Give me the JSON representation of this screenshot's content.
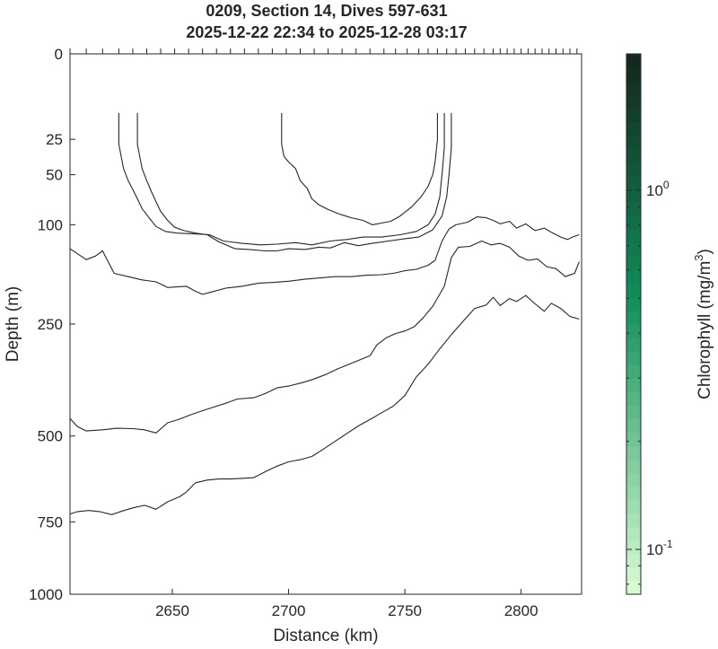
{
  "chart_data": {
    "type": "line",
    "title_lines": [
      "0209, Section 14, Dives 597-631",
      "2025-12-22 22:34 to 2025-12-28 03:17"
    ],
    "xlabel": "Distance (km)",
    "ylabel": "Depth (m)",
    "xlim": [
      2606,
      2826
    ],
    "ylim": [
      0,
      1000
    ],
    "y_scale": "power",
    "x_ticks": [
      "2650",
      "2700",
      "2750",
      "2800"
    ],
    "y_ticks": [
      "0",
      "25",
      "50",
      "100",
      "250",
      "500",
      "750",
      "1000"
    ],
    "top_tick_distances": [
      2606,
      2613,
      2620,
      2627,
      2633,
      2639,
      2645,
      2651,
      2657,
      2663,
      2669,
      2675,
      2681,
      2687,
      2693,
      2699,
      2705,
      2711,
      2717,
      2723,
      2729,
      2735,
      2741,
      2746,
      2751,
      2756,
      2760,
      2764,
      2768,
      2772,
      2776,
      2780,
      2784,
      2788,
      2791,
      2794,
      2797,
      2800,
      2803,
      2806,
      2809,
      2812,
      2815,
      2818,
      2821,
      2824
    ],
    "series": [
      {
        "values": [
          [
            2697,
            12
          ],
          [
            2697,
            28
          ],
          [
            2698,
            36
          ],
          [
            2700,
            40
          ],
          [
            2703,
            45
          ],
          [
            2705,
            55
          ],
          [
            2708,
            62
          ],
          [
            2710,
            72
          ],
          [
            2713,
            78
          ],
          [
            2717,
            83
          ],
          [
            2722,
            88
          ],
          [
            2727,
            92
          ],
          [
            2732,
            95
          ],
          [
            2736,
            100
          ],
          [
            2740,
            98
          ],
          [
            2744,
            96
          ],
          [
            2748,
            90
          ],
          [
            2753,
            80
          ],
          [
            2757,
            70
          ],
          [
            2760,
            60
          ],
          [
            2762,
            50
          ],
          [
            2763,
            40
          ],
          [
            2764,
            25
          ],
          [
            2764,
            12
          ]
        ]
      },
      {
        "values": [
          [
            2627,
            12
          ],
          [
            2627,
            28
          ],
          [
            2628,
            36
          ],
          [
            2629,
            45
          ],
          [
            2631,
            55
          ],
          [
            2633,
            63
          ],
          [
            2635,
            72
          ],
          [
            2637,
            82
          ],
          [
            2640,
            92
          ],
          [
            2643,
            102
          ],
          [
            2647,
            108
          ],
          [
            2652,
            110
          ],
          [
            2660,
            111
          ],
          [
            2666,
            112
          ],
          [
            2672,
            120
          ],
          [
            2680,
            123
          ],
          [
            2688,
            125
          ],
          [
            2695,
            124
          ],
          [
            2703,
            122
          ],
          [
            2710,
            125
          ],
          [
            2718,
            120
          ],
          [
            2725,
            118
          ],
          [
            2732,
            115
          ],
          [
            2740,
            115
          ],
          [
            2748,
            112
          ],
          [
            2755,
            108
          ],
          [
            2760,
            100
          ],
          [
            2763,
            88
          ],
          [
            2765,
            70
          ],
          [
            2766,
            50
          ],
          [
            2767,
            30
          ],
          [
            2767,
            12
          ]
        ]
      },
      {
        "values": [
          [
            2635,
            12
          ],
          [
            2635,
            28
          ],
          [
            2636,
            36
          ],
          [
            2637,
            45
          ],
          [
            2639,
            55
          ],
          [
            2641,
            65
          ],
          [
            2643,
            75
          ],
          [
            2645,
            85
          ],
          [
            2648,
            95
          ],
          [
            2651,
            103
          ],
          [
            2655,
            107
          ],
          [
            2660,
            110
          ],
          [
            2665,
            112
          ],
          [
            2670,
            121
          ],
          [
            2677,
            130
          ],
          [
            2683,
            131
          ],
          [
            2690,
            133
          ],
          [
            2695,
            133
          ],
          [
            2700,
            130
          ],
          [
            2707,
            131
          ],
          [
            2713,
            128
          ],
          [
            2718,
            129
          ],
          [
            2724,
            122
          ],
          [
            2730,
            126
          ],
          [
            2736,
            123
          ],
          [
            2743,
            120
          ],
          [
            2750,
            117
          ],
          [
            2756,
            115
          ],
          [
            2762,
            106
          ],
          [
            2766,
            90
          ],
          [
            2768,
            70
          ],
          [
            2769,
            50
          ],
          [
            2770,
            30
          ],
          [
            2770,
            12
          ]
        ]
      },
      {
        "values": [
          [
            2606,
            130
          ],
          [
            2613,
            145
          ],
          [
            2617,
            140
          ],
          [
            2620,
            133
          ],
          [
            2625,
            165
          ],
          [
            2631,
            170
          ],
          [
            2637,
            175
          ],
          [
            2643,
            178
          ],
          [
            2648,
            187
          ],
          [
            2652,
            186
          ],
          [
            2656,
            185
          ],
          [
            2660,
            193
          ],
          [
            2663,
            198
          ],
          [
            2667,
            194
          ],
          [
            2673,
            188
          ],
          [
            2680,
            185
          ],
          [
            2687,
            180
          ],
          [
            2693,
            179
          ],
          [
            2700,
            177
          ],
          [
            2707,
            174
          ],
          [
            2713,
            172
          ],
          [
            2720,
            170
          ],
          [
            2727,
            170
          ],
          [
            2733,
            168
          ],
          [
            2740,
            167
          ],
          [
            2745,
            165
          ],
          [
            2750,
            161
          ],
          [
            2755,
            159
          ],
          [
            2760,
            153
          ],
          [
            2763,
            146
          ],
          [
            2766,
            120
          ],
          [
            2769,
            105
          ],
          [
            2772,
            100
          ],
          [
            2777,
            97
          ],
          [
            2781,
            91
          ],
          [
            2785,
            92
          ],
          [
            2788,
            95
          ],
          [
            2791,
            99
          ],
          [
            2795,
            96
          ],
          [
            2798,
            104
          ],
          [
            2802,
            99
          ],
          [
            2806,
            107
          ],
          [
            2810,
            104
          ],
          [
            2813,
            109
          ],
          [
            2817,
            115
          ],
          [
            2820,
            118
          ],
          [
            2822,
            115
          ],
          [
            2825,
            112
          ]
        ]
      },
      {
        "values": [
          [
            2606,
            455
          ],
          [
            2609,
            475
          ],
          [
            2613,
            487
          ],
          [
            2620,
            484
          ],
          [
            2626,
            480
          ],
          [
            2633,
            481
          ],
          [
            2638,
            484
          ],
          [
            2643,
            492
          ],
          [
            2648,
            466
          ],
          [
            2653,
            457
          ],
          [
            2658,
            446
          ],
          [
            2663,
            436
          ],
          [
            2668,
            427
          ],
          [
            2673,
            418
          ],
          [
            2678,
            408
          ],
          [
            2685,
            405
          ],
          [
            2690,
            395
          ],
          [
            2695,
            382
          ],
          [
            2700,
            378
          ],
          [
            2706,
            370
          ],
          [
            2711,
            362
          ],
          [
            2716,
            352
          ],
          [
            2721,
            340
          ],
          [
            2726,
            330
          ],
          [
            2731,
            320
          ],
          [
            2735,
            312
          ],
          [
            2738,
            290
          ],
          [
            2742,
            276
          ],
          [
            2746,
            268
          ],
          [
            2750,
            263
          ],
          [
            2754,
            255
          ],
          [
            2758,
            238
          ],
          [
            2762,
            218
          ],
          [
            2767,
            185
          ],
          [
            2770,
            142
          ],
          [
            2773,
            128
          ],
          [
            2778,
            127
          ],
          [
            2783,
            120
          ],
          [
            2787,
            125
          ],
          [
            2791,
            123
          ],
          [
            2795,
            128
          ],
          [
            2799,
            140
          ],
          [
            2803,
            146
          ],
          [
            2807,
            144
          ],
          [
            2811,
            155
          ],
          [
            2815,
            158
          ],
          [
            2819,
            170
          ],
          [
            2823,
            165
          ],
          [
            2825,
            148
          ]
        ]
      },
      {
        "values": [
          [
            2606,
            725
          ],
          [
            2609,
            718
          ],
          [
            2614,
            714
          ],
          [
            2619,
            718
          ],
          [
            2624,
            727
          ],
          [
            2628,
            717
          ],
          [
            2633,
            706
          ],
          [
            2638,
            698
          ],
          [
            2643,
            710
          ],
          [
            2648,
            687
          ],
          [
            2653,
            672
          ],
          [
            2656,
            658
          ],
          [
            2660,
            630
          ],
          [
            2665,
            622
          ],
          [
            2670,
            619
          ],
          [
            2675,
            619
          ],
          [
            2680,
            617
          ],
          [
            2685,
            615
          ],
          [
            2690,
            598
          ],
          [
            2695,
            582
          ],
          [
            2700,
            570
          ],
          [
            2705,
            564
          ],
          [
            2710,
            555
          ],
          [
            2715,
            535
          ],
          [
            2720,
            514
          ],
          [
            2725,
            494
          ],
          [
            2730,
            474
          ],
          [
            2735,
            458
          ],
          [
            2740,
            441
          ],
          [
            2745,
            425
          ],
          [
            2750,
            400
          ],
          [
            2755,
            357
          ],
          [
            2760,
            330
          ],
          [
            2765,
            298
          ],
          [
            2770,
            270
          ],
          [
            2775,
            245
          ],
          [
            2780,
            222
          ],
          [
            2785,
            216
          ],
          [
            2788,
            203
          ],
          [
            2791,
            217
          ],
          [
            2795,
            205
          ],
          [
            2798,
            210
          ],
          [
            2802,
            200
          ],
          [
            2806,
            214
          ],
          [
            2810,
            227
          ],
          [
            2813,
            213
          ],
          [
            2817,
            222
          ],
          [
            2821,
            236
          ],
          [
            2825,
            241
          ]
        ]
      }
    ]
  },
  "colorbar": {
    "label": "Chlorophyll (mg/m",
    "label_superscript": "3",
    "label_close": ")",
    "log_range": [
      0.075,
      2.4
    ],
    "major_ticks": [
      {
        "value": 1.0,
        "base": "10",
        "exp": "0"
      },
      {
        "value": 0.1,
        "base": "10",
        "exp": "-1"
      }
    ],
    "minor_ticks": [
      0.08,
      0.09,
      0.2,
      0.3,
      0.4,
      0.5,
      0.6,
      0.7,
      0.8,
      0.9,
      2.0
    ],
    "color_low": "#d7fad3",
    "color_mid": "#0f8f5a",
    "color_high": "#13291d",
    "steps": 40
  },
  "colors": {
    "contour": "#262626",
    "axis": "#262626",
    "text": "#262626"
  }
}
